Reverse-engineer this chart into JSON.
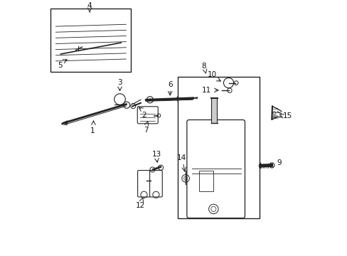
{
  "bg_color": "#ffffff",
  "line_color": "#222222",
  "label_color": "#111111",
  "fig_width": 4.89,
  "fig_height": 3.6,
  "dpi": 100
}
